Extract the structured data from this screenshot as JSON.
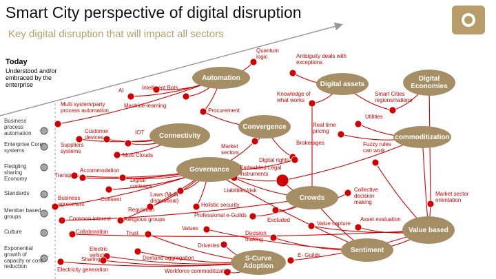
{
  "header": {
    "title": "Smart City perspective of digital disruption",
    "subtitle": "Key digital disruption that will impact all sectors"
  },
  "today": {
    "title": "Today",
    "text": "Understood and/or embraced by the enterprise"
  },
  "categories": [
    "Business process automation",
    "Enterprise Core systems",
    "Fledgling sharing Economy",
    "Standards",
    "Member based groups",
    "Culture",
    "Exponential growth of capacity or cost reduction"
  ],
  "hubs": [
    "Automation",
    "Connectivity",
    "Convergence",
    "Digital assets",
    "Digital Economies",
    "commoditization",
    "Governance",
    "Crowds",
    "Value based",
    "Sentiment",
    "S-Curve Adoption"
  ],
  "labels": [
    "Quantum logic",
    "Ambiguity deals with exceptions",
    "AI",
    "Intelligent Bots",
    "Machine-learning",
    "Multi system/party process automation",
    "Procurement",
    "Knowledge of what works",
    "Smart Cities regions/nations",
    "Utilities",
    "Customer devices",
    "IOT",
    "Suppliers systems",
    "Multi Clouds",
    "Market sectors",
    "Real time pricing",
    "Brokerages",
    "Fuzzy rules can work",
    "Accommodation",
    "Transport",
    "Digital rights",
    "Embedded Legal instruments",
    "Digital contracts",
    "Business agreement",
    "Consent",
    "Laws (Multi distortional)",
    "Liabilities/risk",
    "Collective decision making",
    "Market sector orientation",
    "Regulation",
    "Holistic security",
    "Common interest",
    "Religious groups",
    "Professional e-Guilds",
    "Excluded",
    "Value capture",
    "Asset evaluation",
    "Values",
    "Collaboration",
    "Trust",
    "Decision making",
    "Electric vehicle",
    "Sharing",
    "Driveries",
    "Demand aggregation",
    "E- Guilds",
    "Electricity generation",
    "Workforce commoditization"
  ]
}
